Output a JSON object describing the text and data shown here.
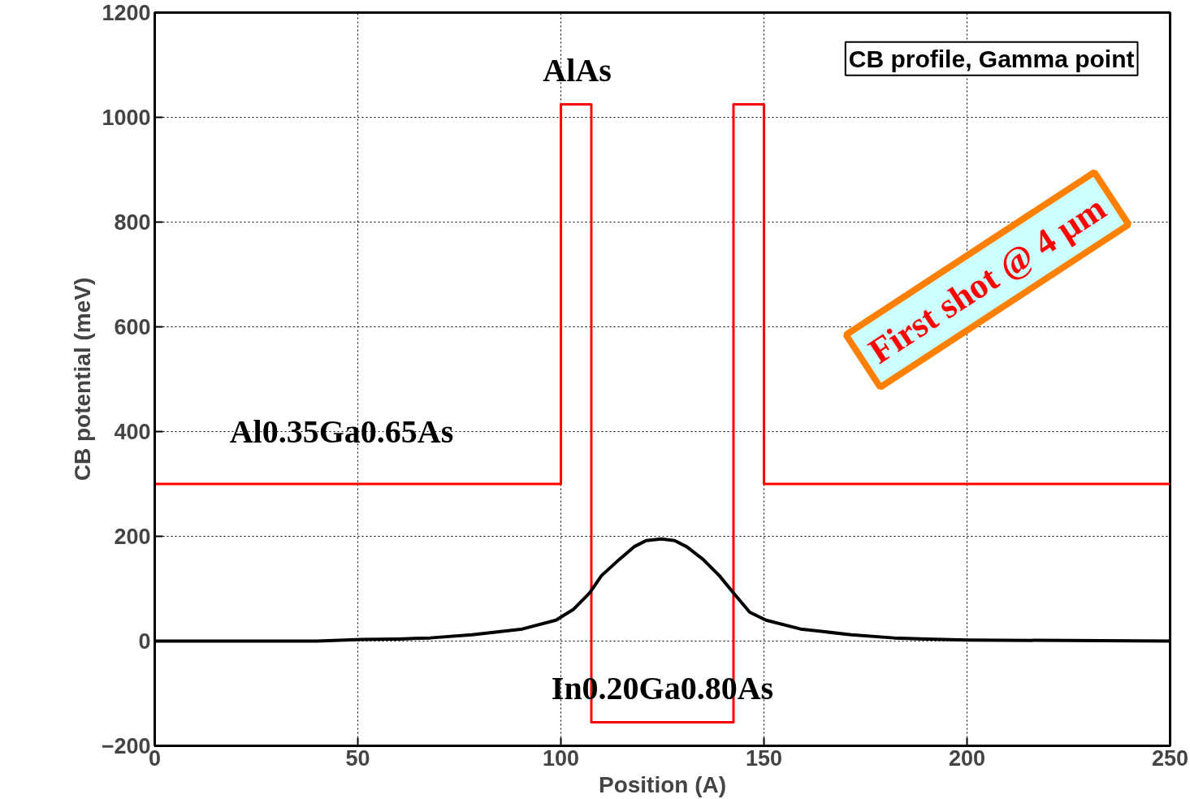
{
  "chart_data": {
    "type": "line",
    "xlabel": "Position (A)",
    "ylabel": "CB potential (meV)",
    "xlim": [
      0,
      250
    ],
    "ylim": [
      -200,
      1200
    ],
    "xticks": [
      0,
      50,
      100,
      150,
      200,
      250
    ],
    "yticks": [
      -200,
      0,
      200,
      400,
      600,
      800,
      1000,
      1200
    ],
    "grid": true,
    "marker": "none",
    "line_style": "solid",
    "series": [
      {
        "color": "#ff0000",
        "x": [
          0,
          100,
          100,
          107.5,
          107.5,
          142.5,
          142.5,
          150,
          150,
          250
        ],
        "values": [
          300,
          300,
          1025,
          1025,
          -155,
          -155,
          1025,
          1025,
          300,
          300
        ]
      },
      {
        "color": "#000000",
        "x": [
          0,
          40,
          51,
          60,
          67.8,
          78.1,
          90.5,
          98.8,
          103,
          107.1,
          110,
          114.4,
          118,
          121,
          124.7,
          128,
          131,
          135,
          139,
          142.5,
          146.5,
          150.5,
          159,
          171.5,
          182,
          190,
          200,
          250
        ],
        "values": [
          0,
          0,
          3,
          4,
          6,
          12,
          23,
          40,
          60,
          92,
          125,
          156,
          180,
          192,
          195,
          192,
          180,
          156,
          125,
          92,
          55,
          40,
          23,
          12,
          6,
          4,
          2,
          0
        ]
      }
    ],
    "annotations": [
      "CB profile, Gamma point",
      "First shot @ 4 µm",
      "AlAs",
      "Al0.35Ga0.65As",
      "In0.20Ga0.80As"
    ]
  }
}
